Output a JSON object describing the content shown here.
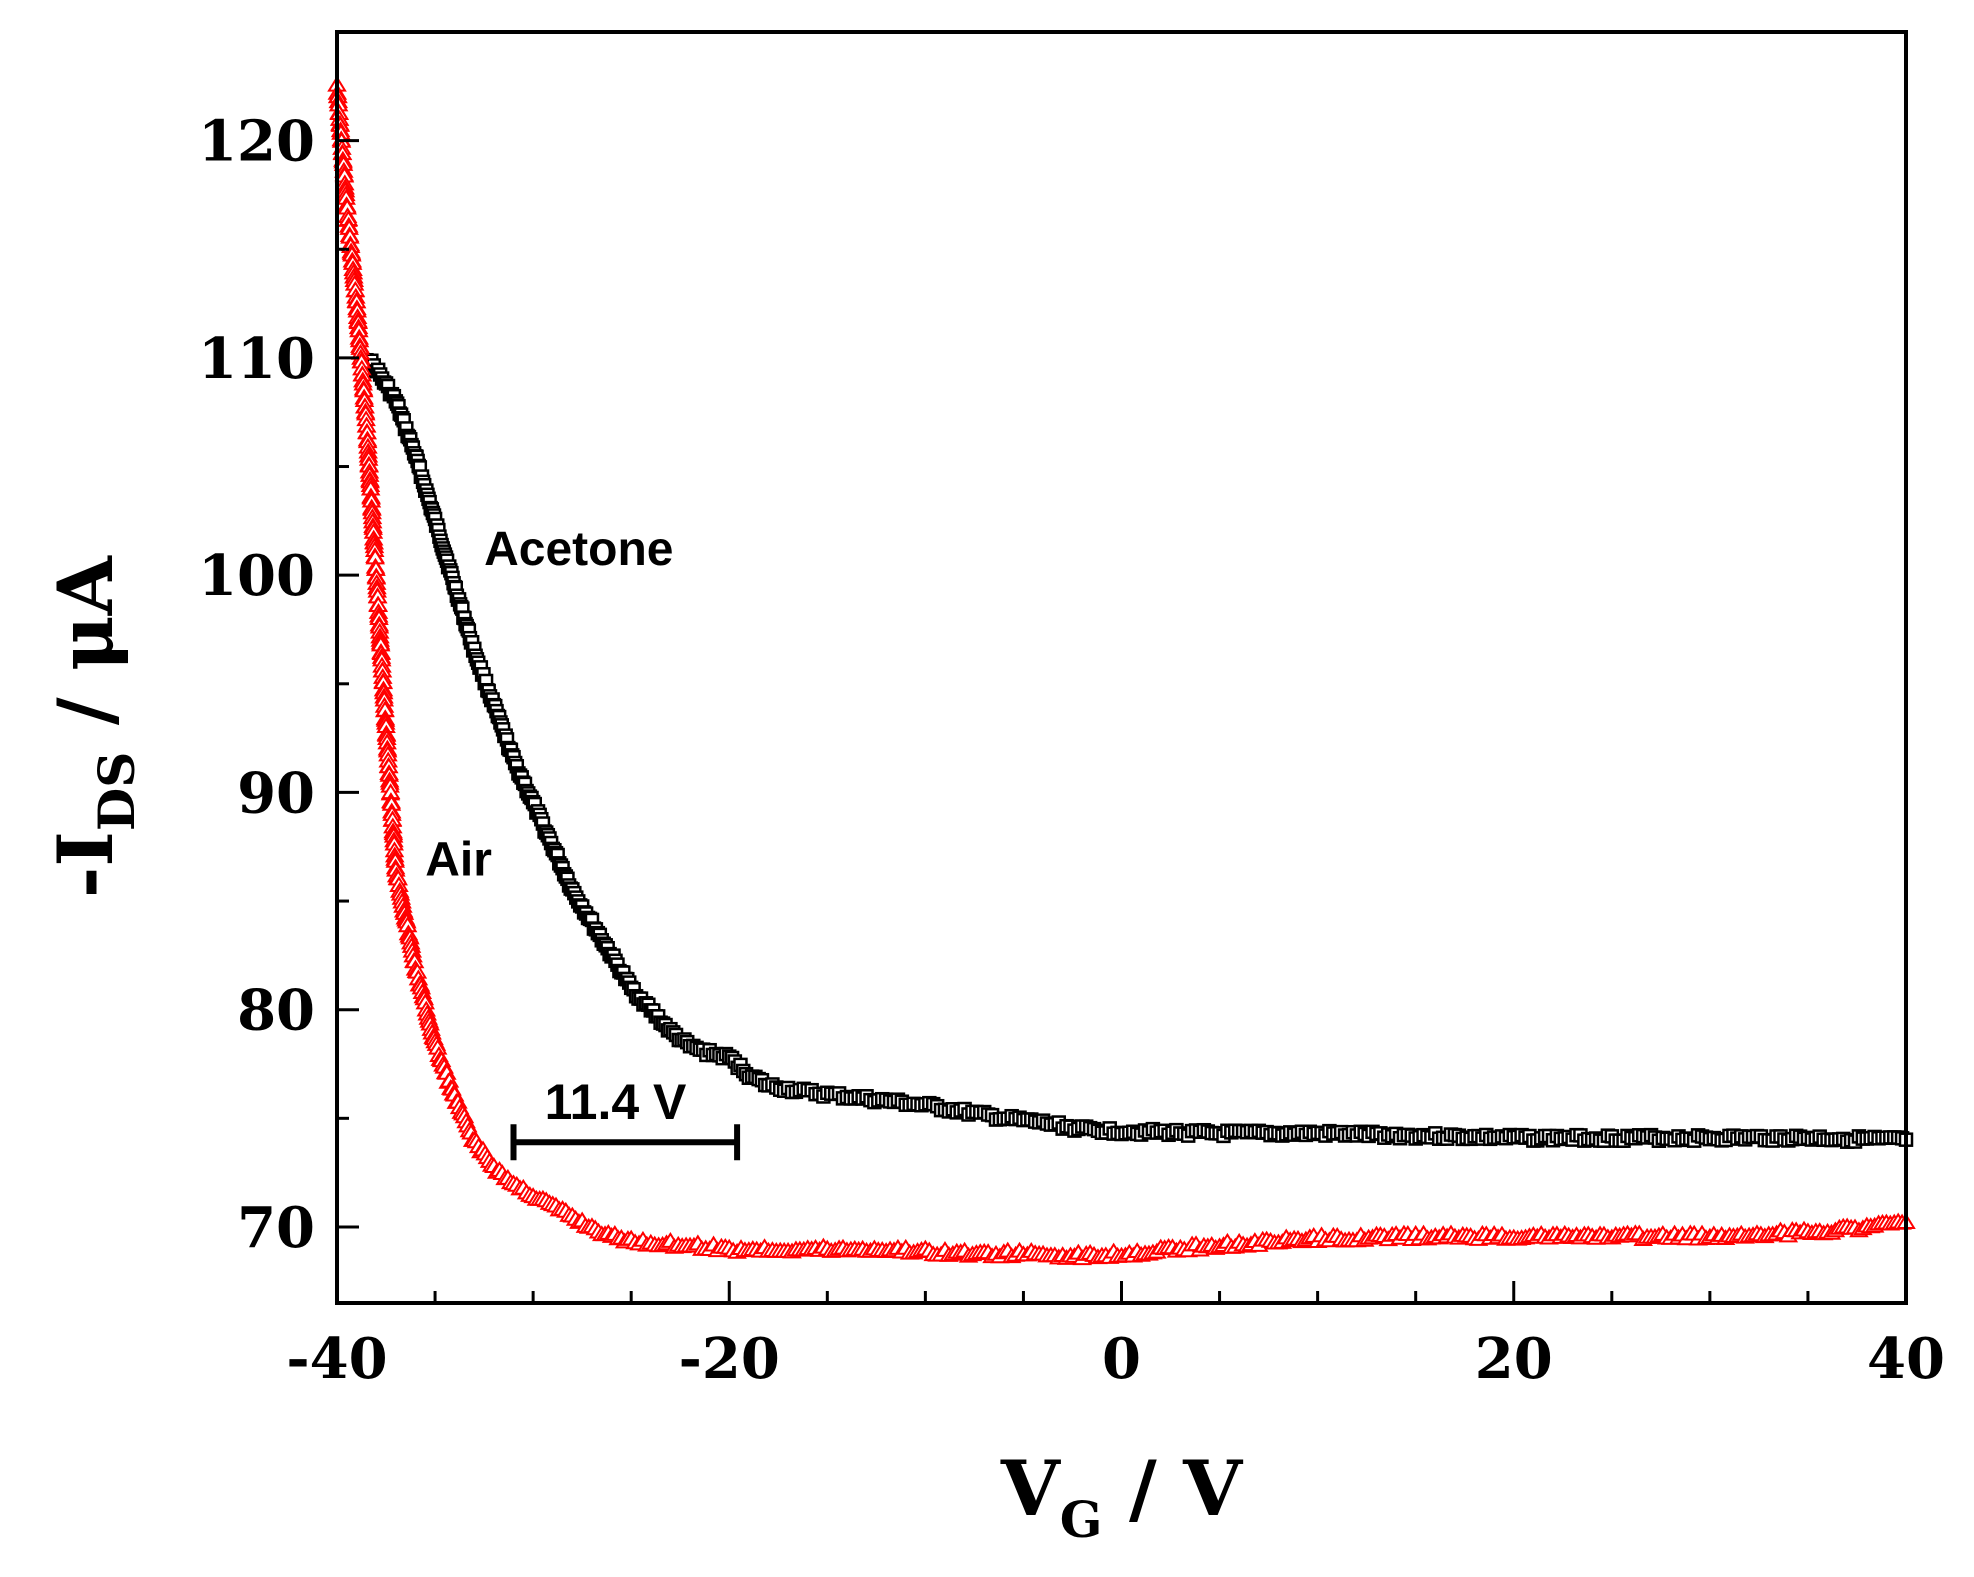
{
  "chart_data": {
    "type": "scatter",
    "title": "",
    "xlabel": {
      "main": "V",
      "sub": "G",
      "suffix": " / V"
    },
    "ylabel": {
      "prefix": "-I",
      "sub": "DS",
      "suffix": " / μA"
    },
    "xlim": [
      -40,
      40
    ],
    "ylim": [
      66.5,
      125
    ],
    "xticks": [
      -40,
      -20,
      0,
      20,
      40
    ],
    "xtick_labels": [
      "-40",
      "-20",
      "0",
      "20",
      "40"
    ],
    "yticks": [
      70,
      80,
      90,
      100,
      110,
      120
    ],
    "ytick_labels": [
      "70",
      "80",
      "90",
      "100",
      "110",
      "120"
    ],
    "grid": false,
    "series": [
      {
        "name": "Acetone",
        "marker": "square",
        "color": "#000000",
        "x": [
          -38.5,
          -38,
          -37,
          -36,
          -35,
          -34,
          -33,
          -32,
          -31,
          -30,
          -29,
          -28,
          -27,
          -26,
          -25,
          -24,
          -23,
          -22,
          -21,
          -20,
          -19,
          -18,
          -16,
          -14,
          -12,
          -10,
          -8,
          -6,
          -4,
          -2,
          0,
          5,
          10,
          15,
          20,
          25,
          30,
          35,
          40
        ],
        "y": [
          110,
          109.5,
          108,
          105.5,
          102.5,
          99.5,
          96.5,
          94,
          91.5,
          89.5,
          87.5,
          85.5,
          84,
          82.5,
          81,
          80,
          79,
          78.3,
          78,
          77.8,
          77,
          76.5,
          76.2,
          76,
          75.8,
          75.6,
          75.3,
          75,
          74.8,
          74.5,
          74.4,
          74.3,
          74.3,
          74.2,
          74.1,
          74.1,
          74.1,
          74.1,
          74
        ]
      },
      {
        "name": "Air",
        "marker": "triangle",
        "color": "#ff0000",
        "x": [
          -40,
          -39.5,
          -39,
          -38.5,
          -38,
          -37.5,
          -37,
          -36,
          -35,
          -34,
          -33,
          -32,
          -31,
          -30,
          -29,
          -28,
          -27,
          -26,
          -25,
          -24,
          -22,
          -20,
          -18,
          -15,
          -12,
          -10,
          -8,
          -5,
          -2,
          0,
          5,
          10,
          15,
          20,
          25,
          30,
          35,
          40
        ],
        "y": [
          122.5,
          117,
          112.5,
          107,
          100,
          93,
          86.5,
          82,
          78.5,
          76,
          74,
          72.8,
          72,
          71.5,
          71,
          70.5,
          70,
          69.6,
          69.4,
          69.3,
          69.2,
          69,
          69,
          69,
          69,
          68.9,
          68.8,
          68.8,
          68.7,
          68.8,
          69.2,
          69.5,
          69.6,
          69.6,
          69.6,
          69.6,
          69.8,
          70.2
        ]
      }
    ],
    "annotations": [
      {
        "text": "Acetone",
        "x": -32.5,
        "y": 101.3
      },
      {
        "text": "Air",
        "x": -35.5,
        "y": 87
      },
      {
        "text": "11.4 V",
        "x": -25.8,
        "y": 75.8,
        "bracket_x": [
          -31,
          -19.6
        ],
        "bracket_y": 73.9
      }
    ]
  }
}
